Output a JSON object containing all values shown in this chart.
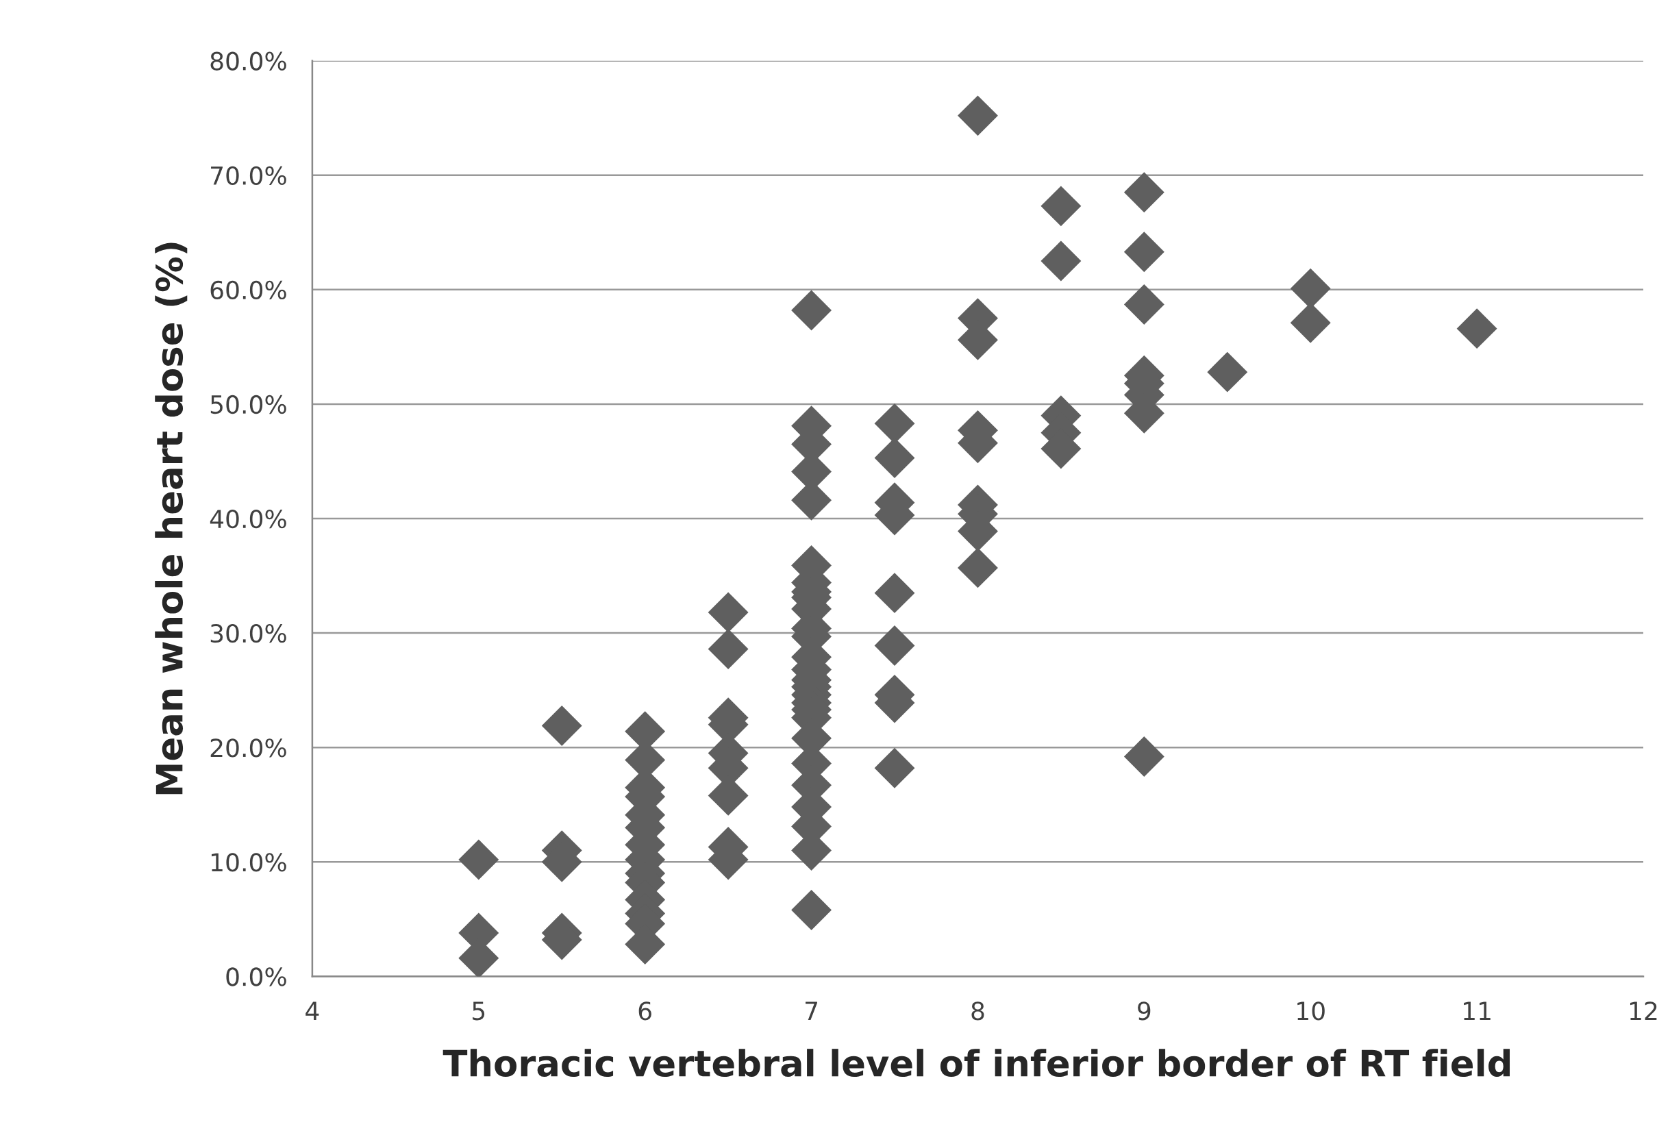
{
  "chart_data": {
    "type": "scatter",
    "xlabel": "Thoracic vertebral level of inferior border of RT field",
    "ylabel": "Mean whole heart dose (%)",
    "x": [
      5,
      5,
      5,
      5.5,
      5.5,
      5.5,
      5.5,
      5.5,
      6,
      6,
      6,
      6,
      6,
      6,
      6,
      6,
      6,
      6,
      6,
      6,
      6,
      6,
      6.5,
      6.5,
      6.5,
      6.5,
      6.5,
      6.5,
      6.5,
      6.5,
      6.5,
      7,
      7,
      7,
      7,
      7,
      7,
      7,
      7,
      7,
      7,
      7,
      7,
      7,
      7,
      7,
      7,
      7,
      7,
      7,
      7,
      7,
      7,
      7,
      7,
      7,
      7,
      7,
      7.5,
      7.5,
      7.5,
      7.5,
      7.5,
      7.5,
      7.5,
      7.5,
      7.5,
      8,
      8,
      8,
      8,
      8,
      8,
      8,
      8,
      8,
      8.5,
      8.5,
      8.5,
      8.5,
      8.5,
      9,
      9,
      9,
      9,
      9,
      9,
      9,
      9,
      9.5,
      10,
      10,
      11
    ],
    "series": [
      {
        "color": "#5f5f5f",
        "values": [
          10.2,
          3.8,
          1.6,
          21.9,
          11.0,
          10.0,
          3.8,
          3.2,
          21.4,
          18.9,
          16.5,
          15.7,
          14.1,
          13.0,
          11.5,
          10.2,
          9.0,
          8.2,
          6.7,
          5.5,
          4.6,
          2.8,
          31.8,
          28.6,
          22.6,
          22.0,
          19.5,
          18.2,
          15.8,
          11.3,
          10.2,
          58.2,
          48.1,
          46.5,
          44.1,
          41.6,
          35.9,
          34.4,
          33.6,
          33.1,
          32.1,
          30.4,
          29.7,
          27.9,
          26.8,
          25.9,
          25.3,
          24.6,
          23.9,
          23.3,
          22.6,
          20.8,
          18.6,
          16.7,
          14.8,
          13.1,
          11.0,
          5.8,
          48.3,
          45.3,
          41.4,
          40.3,
          33.5,
          28.9,
          24.6,
          23.9,
          18.2,
          75.2,
          57.5,
          55.6,
          47.7,
          46.6,
          41.2,
          40.4,
          38.9,
          35.7,
          67.3,
          62.5,
          49.0,
          47.5,
          46.1,
          68.5,
          63.3,
          58.7,
          52.5,
          51.8,
          50.8,
          49.2,
          19.2,
          52.8,
          60.1,
          57.1,
          56.6
        ]
      }
    ],
    "marker": "diamond",
    "grid": "y",
    "legend": false,
    "xlim": [
      4,
      12
    ],
    "xticks": [
      4,
      5,
      6,
      7,
      8,
      9,
      10,
      11,
      12
    ],
    "ylim": [
      0,
      80
    ],
    "yticks": [
      {
        "value": 0,
        "label": "0.0%"
      },
      {
        "value": 10,
        "label": "10.0%"
      },
      {
        "value": 20,
        "label": "20.0%"
      },
      {
        "value": 30,
        "label": "30.0%"
      },
      {
        "value": 40,
        "label": "40.0%"
      },
      {
        "value": 50,
        "label": "50.0%"
      },
      {
        "value": 60,
        "label": "60.0%"
      },
      {
        "value": 70,
        "label": "70.0%"
      },
      {
        "value": 80,
        "label": "80.0%"
      }
    ]
  }
}
